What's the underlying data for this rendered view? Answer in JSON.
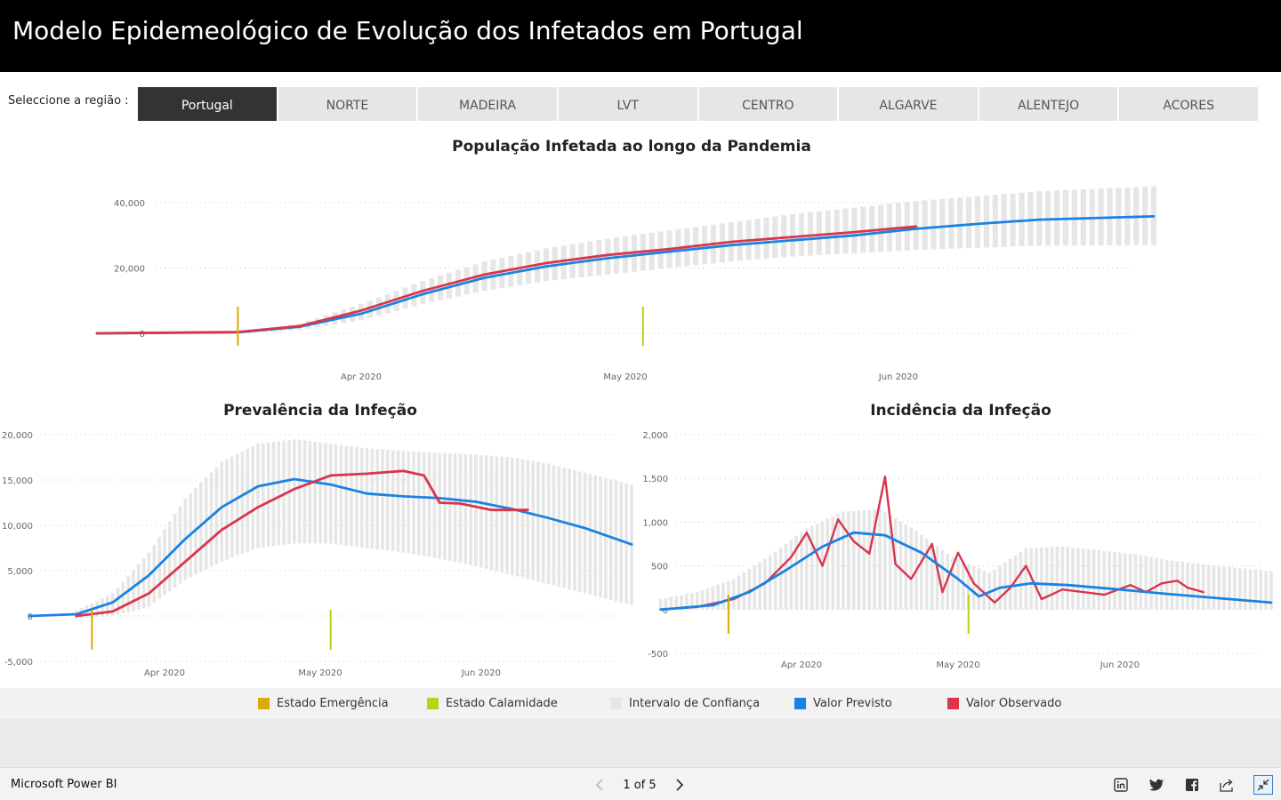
{
  "header": {
    "title": "Modelo Epidemeológico de Evolução dos Infetados em Portugal"
  },
  "region": {
    "label": "Seleccione a região :",
    "tabs": [
      "Portugal",
      "NORTE",
      "MADEIRA",
      "LVT",
      "CENTRO",
      "ALGARVE",
      "ALENTEJO",
      "ACORES"
    ],
    "selected": "Portugal"
  },
  "colors": {
    "emergencia": "#dcaa00",
    "calamidade": "#b5d414",
    "intervalo": "#e6e6e6",
    "previsto": "#1a82e2",
    "observado": "#d9354d"
  },
  "charts": {
    "populacao": {
      "title": "População Infetada ao longo da Pandemia",
      "yticks": [
        "40,000",
        "20,000",
        "0"
      ],
      "xticks": [
        "Apr 2020",
        "May 2020",
        "Jun 2020"
      ]
    },
    "prevalencia": {
      "title": "Prevalência da Infeção",
      "yticks": [
        "20,000",
        "15,000",
        "10,000",
        "5,000",
        "0",
        "-5,000"
      ],
      "xticks": [
        "Apr 2020",
        "May 2020",
        "Jun 2020"
      ]
    },
    "incidencia": {
      "title": "Incidência da Infeção",
      "yticks": [
        "2,000",
        "1,500",
        "1,000",
        "500",
        "0",
        "-500"
      ],
      "xticks": [
        "Apr 2020",
        "May 2020",
        "Jun 2020"
      ]
    }
  },
  "chart_data": [
    {
      "type": "line",
      "title": "População Infetada ao longo da Pandemia",
      "ylim": [
        0,
        40000
      ],
      "x_start": "2020-03-02",
      "x_end": "2020-06-30",
      "events": [
        {
          "name": "Estado Emergência",
          "date": "2020-03-18"
        },
        {
          "name": "Estado Calamidade",
          "date": "2020-05-03"
        }
      ],
      "series": [
        {
          "name": "Valor Previsto",
          "type": "line",
          "points": [
            [
              "2020-03-02",
              0
            ],
            [
              "2020-03-18",
              300
            ],
            [
              "2020-03-25",
              2000
            ],
            [
              "2020-04-01",
              6000
            ],
            [
              "2020-04-08",
              12000
            ],
            [
              "2020-04-15",
              17000
            ],
            [
              "2020-04-22",
              20500
            ],
            [
              "2020-04-29",
              23000
            ],
            [
              "2020-05-06",
              25000
            ],
            [
              "2020-05-13",
              27000
            ],
            [
              "2020-05-20",
              28500
            ],
            [
              "2020-05-27",
              30000
            ],
            [
              "2020-06-03",
              32000
            ],
            [
              "2020-06-10",
              33500
            ],
            [
              "2020-06-17",
              34800
            ],
            [
              "2020-06-30",
              35800
            ]
          ]
        },
        {
          "name": "Valor Observado",
          "type": "line",
          "points": [
            [
              "2020-03-02",
              0
            ],
            [
              "2020-03-18",
              400
            ],
            [
              "2020-03-25",
              2200
            ],
            [
              "2020-04-01",
              7000
            ],
            [
              "2020-04-08",
              13000
            ],
            [
              "2020-04-15",
              18000
            ],
            [
              "2020-04-22",
              21500
            ],
            [
              "2020-04-29",
              24000
            ],
            [
              "2020-05-06",
              25800
            ],
            [
              "2020-05-13",
              28000
            ],
            [
              "2020-05-20",
              29500
            ],
            [
              "2020-05-27",
              31000
            ],
            [
              "2020-06-03",
              32700
            ]
          ]
        },
        {
          "name": "Intervalo de Confiança",
          "type": "band",
          "points": [
            [
              "2020-03-18",
              0,
              500
            ],
            [
              "2020-03-25",
              1000,
              3000
            ],
            [
              "2020-04-01",
              4000,
              9000
            ],
            [
              "2020-04-08",
              9000,
              16000
            ],
            [
              "2020-04-15",
              13000,
              22000
            ],
            [
              "2020-04-22",
              16000,
              26000
            ],
            [
              "2020-04-29",
              18000,
              29000
            ],
            [
              "2020-05-06",
              20000,
              31500
            ],
            [
              "2020-05-13",
              22000,
              34000
            ],
            [
              "2020-05-20",
              23500,
              36500
            ],
            [
              "2020-05-27",
              24500,
              38500
            ],
            [
              "2020-06-03",
              25500,
              40500
            ],
            [
              "2020-06-10",
              26200,
              42000
            ],
            [
              "2020-06-17",
              26800,
              43500
            ],
            [
              "2020-06-30",
              27000,
              45000
            ]
          ]
        }
      ]
    },
    {
      "type": "line",
      "title": "Prevalência da Infeção",
      "ylim": [
        -5000,
        20000
      ],
      "x_start": "2020-03-06",
      "x_end": "2020-06-30",
      "events": [
        {
          "name": "Estado Emergência",
          "date": "2020-03-18"
        },
        {
          "name": "Estado Calamidade",
          "date": "2020-05-03"
        }
      ],
      "series": [
        {
          "name": "Valor Previsto",
          "type": "line",
          "points": [
            [
              "2020-03-06",
              0
            ],
            [
              "2020-03-15",
              200
            ],
            [
              "2020-03-22",
              1500
            ],
            [
              "2020-03-29",
              4500
            ],
            [
              "2020-04-05",
              8500
            ],
            [
              "2020-04-12",
              12000
            ],
            [
              "2020-04-19",
              14300
            ],
            [
              "2020-04-26",
              15100
            ],
            [
              "2020-05-03",
              14500
            ],
            [
              "2020-05-10",
              13500
            ],
            [
              "2020-05-17",
              13200
            ],
            [
              "2020-05-24",
              13000
            ],
            [
              "2020-05-31",
              12600
            ],
            [
              "2020-06-07",
              11800
            ],
            [
              "2020-06-14",
              10800
            ],
            [
              "2020-06-21",
              9700
            ],
            [
              "2020-06-30",
              7900
            ]
          ]
        },
        {
          "name": "Valor Observado",
          "type": "line",
          "points": [
            [
              "2020-03-15",
              0
            ],
            [
              "2020-03-22",
              500
            ],
            [
              "2020-03-29",
              2500
            ],
            [
              "2020-04-05",
              6000
            ],
            [
              "2020-04-12",
              9500
            ],
            [
              "2020-04-19",
              12000
            ],
            [
              "2020-04-26",
              14000
            ],
            [
              "2020-05-03",
              15500
            ],
            [
              "2020-05-10",
              15700
            ],
            [
              "2020-05-17",
              16000
            ],
            [
              "2020-05-21",
              15500
            ],
            [
              "2020-05-24",
              12500
            ],
            [
              "2020-05-28",
              12400
            ],
            [
              "2020-06-03",
              11700
            ],
            [
              "2020-06-10",
              11700
            ]
          ]
        },
        {
          "name": "Intervalo de Confiança",
          "type": "band",
          "points": [
            [
              "2020-03-15",
              -300,
              600
            ],
            [
              "2020-03-22",
              0,
              2500
            ],
            [
              "2020-03-29",
              1000,
              7000
            ],
            [
              "2020-04-05",
              4000,
              13000
            ],
            [
              "2020-04-12",
              6000,
              17000
            ],
            [
              "2020-04-19",
              7500,
              19000
            ],
            [
              "2020-04-26",
              8000,
              19500
            ],
            [
              "2020-05-03",
              8000,
              19000
            ],
            [
              "2020-05-10",
              7500,
              18500
            ],
            [
              "2020-05-17",
              7000,
              18200
            ],
            [
              "2020-05-24",
              6300,
              18000
            ],
            [
              "2020-05-31",
              5500,
              17800
            ],
            [
              "2020-06-07",
              4500,
              17500
            ],
            [
              "2020-06-14",
              3500,
              16800
            ],
            [
              "2020-06-21",
              2500,
              15800
            ],
            [
              "2020-06-30",
              1200,
              14500
            ]
          ]
        }
      ]
    },
    {
      "type": "line",
      "title": "Incidência da Infeção",
      "ylim": [
        -500,
        2000
      ],
      "x_start": "2020-03-05",
      "x_end": "2020-06-30",
      "events": [
        {
          "name": "Estado Emergência",
          "date": "2020-03-18"
        },
        {
          "name": "Estado Calamidade",
          "date": "2020-05-03"
        }
      ],
      "series": [
        {
          "name": "Valor Previsto",
          "type": "line",
          "points": [
            [
              "2020-03-05",
              0
            ],
            [
              "2020-03-15",
              50
            ],
            [
              "2020-03-22",
              200
            ],
            [
              "2020-03-29",
              450
            ],
            [
              "2020-04-05",
              720
            ],
            [
              "2020-04-11",
              880
            ],
            [
              "2020-04-17",
              850
            ],
            [
              "2020-04-24",
              650
            ],
            [
              "2020-05-01",
              350
            ],
            [
              "2020-05-05",
              150
            ],
            [
              "2020-05-09",
              250
            ],
            [
              "2020-05-15",
              300
            ],
            [
              "2020-05-22",
              280
            ],
            [
              "2020-06-01",
              230
            ],
            [
              "2020-06-10",
              180
            ],
            [
              "2020-06-20",
              130
            ],
            [
              "2020-06-30",
              80
            ]
          ]
        },
        {
          "name": "Valor Observado",
          "type": "line",
          "points": [
            [
              "2020-03-05",
              0
            ],
            [
              "2020-03-12",
              30
            ],
            [
              "2020-03-19",
              120
            ],
            [
              "2020-03-25",
              300
            ],
            [
              "2020-03-30",
              600
            ],
            [
              "2020-04-02",
              880
            ],
            [
              "2020-04-05",
              500
            ],
            [
              "2020-04-08",
              1030
            ],
            [
              "2020-04-11",
              780
            ],
            [
              "2020-04-14",
              640
            ],
            [
              "2020-04-17",
              1520
            ],
            [
              "2020-04-19",
              520
            ],
            [
              "2020-04-22",
              350
            ],
            [
              "2020-04-26",
              750
            ],
            [
              "2020-04-28",
              200
            ],
            [
              "2020-05-01",
              650
            ],
            [
              "2020-05-04",
              300
            ],
            [
              "2020-05-08",
              80
            ],
            [
              "2020-05-11",
              250
            ],
            [
              "2020-05-14",
              500
            ],
            [
              "2020-05-17",
              120
            ],
            [
              "2020-05-21",
              230
            ],
            [
              "2020-05-25",
              200
            ],
            [
              "2020-05-29",
              170
            ],
            [
              "2020-06-03",
              280
            ],
            [
              "2020-06-06",
              200
            ],
            [
              "2020-06-09",
              300
            ],
            [
              "2020-06-12",
              330
            ],
            [
              "2020-06-14",
              250
            ],
            [
              "2020-06-17",
              200
            ]
          ]
        },
        {
          "name": "Intervalo de Confiança",
          "type": "band",
          "points": [
            [
              "2020-03-05",
              0,
              120
            ],
            [
              "2020-03-12",
              0,
              200
            ],
            [
              "2020-03-19",
              0,
              350
            ],
            [
              "2020-03-26",
              0,
              620
            ],
            [
              "2020-04-02",
              0,
              930
            ],
            [
              "2020-04-09",
              0,
              1120
            ],
            [
              "2020-04-16",
              0,
              1150
            ],
            [
              "2020-04-23",
              0,
              900
            ],
            [
              "2020-04-30",
              0,
              600
            ],
            [
              "2020-05-07",
              0,
              420
            ],
            [
              "2020-05-14",
              0,
              700
            ],
            [
              "2020-05-21",
              0,
              720
            ],
            [
              "2020-05-28",
              0,
              680
            ],
            [
              "2020-06-04",
              0,
              630
            ],
            [
              "2020-06-11",
              0,
              560
            ],
            [
              "2020-06-18",
              0,
              510
            ],
            [
              "2020-06-30",
              0,
              440
            ]
          ]
        }
      ]
    }
  ],
  "legend": [
    {
      "label": "Estado Emergência",
      "color": "#dcaa00"
    },
    {
      "label": "Estado Calamidade",
      "color": "#b5d414"
    },
    {
      "label": "Intervalo de Confiança",
      "color": "#e6e6e6"
    },
    {
      "label": "Valor Previsto",
      "color": "#1a82e2"
    },
    {
      "label": "Valor Observado",
      "color": "#d9354d"
    }
  ],
  "footer": {
    "brand": "Microsoft Power BI",
    "page": "1 of 5",
    "icons": [
      "linkedin-icon",
      "twitter-icon",
      "facebook-icon",
      "share-icon",
      "fullscreen-exit-icon"
    ]
  }
}
